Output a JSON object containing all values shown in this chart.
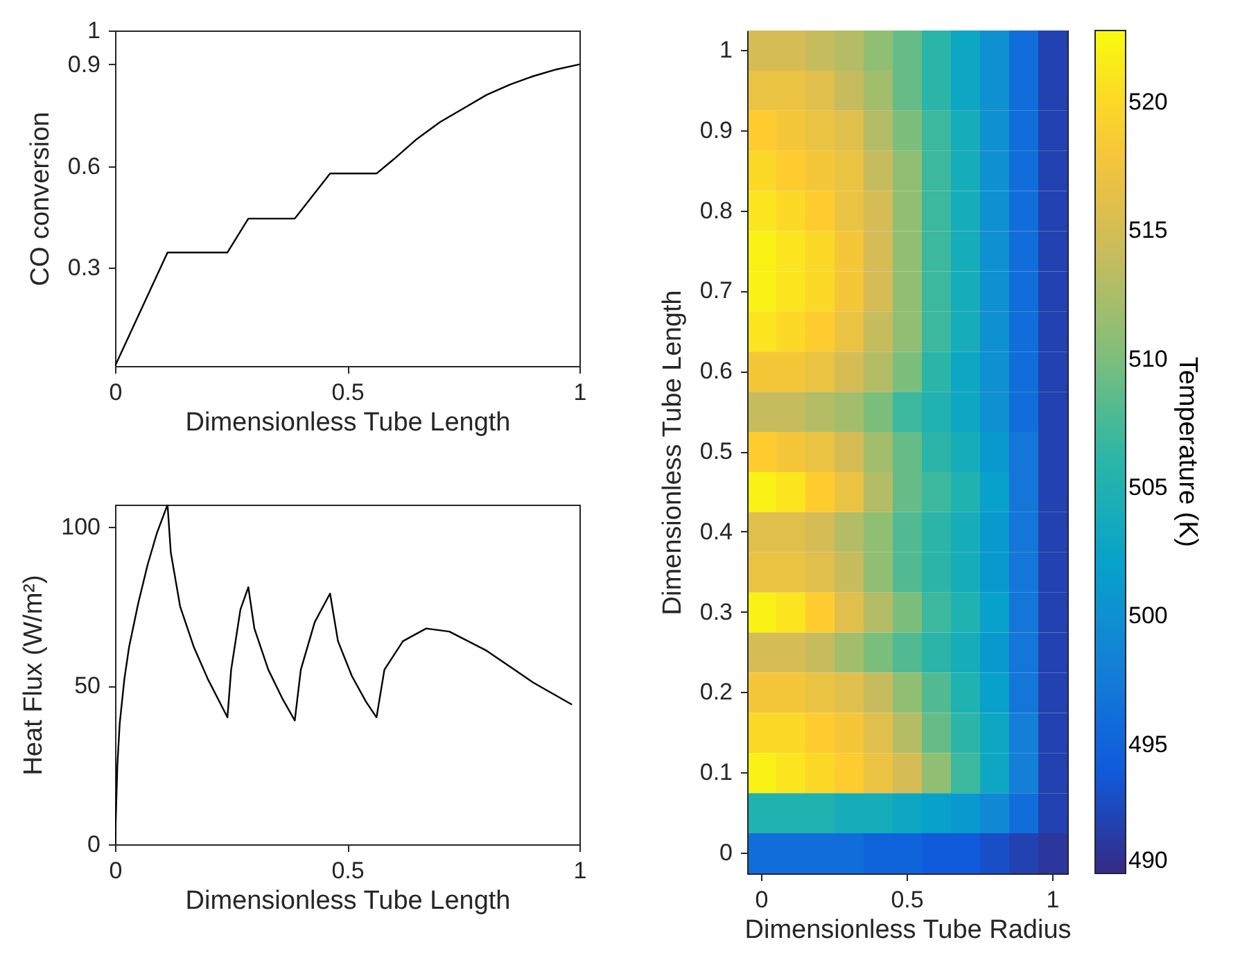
{
  "chart_data": [
    {
      "type": "line",
      "xlabel": "Dimensionless Tube Length",
      "ylabel": "CO conversion",
      "xlim": [
        0,
        1
      ],
      "ylim": [
        0.01,
        1
      ],
      "xticks": [
        0,
        0.5,
        1
      ],
      "yticks": [
        0.3,
        0.6,
        0.9,
        1
      ],
      "x": [
        0,
        0.113,
        0.242,
        0.287,
        0.387,
        0.463,
        0.563,
        0.6,
        0.65,
        0.7,
        0.75,
        0.8,
        0.85,
        0.9,
        0.95,
        1.0
      ],
      "series": [
        {
          "color": "#000000",
          "values": [
            0.01,
            0.345,
            0.345,
            0.445,
            0.445,
            0.578,
            0.578,
            0.62,
            0.68,
            0.73,
            0.77,
            0.81,
            0.84,
            0.865,
            0.885,
            0.9
          ]
        }
      ]
    },
    {
      "type": "line",
      "xlabel": "Dimensionless Tube Length",
      "ylabel": "Heat Flux (W/m²)",
      "xlim": [
        0,
        1
      ],
      "ylim": [
        0,
        107
      ],
      "xticks": [
        0,
        0.5,
        1
      ],
      "yticks": [
        0,
        50,
        100
      ],
      "x": [
        0,
        0.005,
        0.01,
        0.02,
        0.03,
        0.05,
        0.07,
        0.09,
        0.113,
        0.12,
        0.14,
        0.17,
        0.2,
        0.242,
        0.25,
        0.27,
        0.287,
        0.3,
        0.33,
        0.36,
        0.387,
        0.4,
        0.43,
        0.463,
        0.48,
        0.51,
        0.54,
        0.563,
        0.58,
        0.62,
        0.67,
        0.72,
        0.8,
        0.85,
        0.9,
        0.984
      ],
      "series": [
        {
          "color": "#000000",
          "values": [
            0,
            25,
            38,
            52,
            62,
            76,
            88,
            98,
            107,
            92,
            75,
            62,
            52,
            40,
            55,
            74,
            81,
            68,
            55,
            46,
            39,
            55,
            70,
            79,
            64,
            53,
            45,
            40,
            55,
            64,
            68,
            67,
            61,
            56,
            51,
            44
          ]
        }
      ]
    },
    {
      "type": "heatmap",
      "xlabel": "Dimensionless Tube Radius",
      "ylabel": "Dimensionless Tube Length",
      "clabel": "Temperature (K)",
      "clim": [
        490,
        522.8
      ],
      "cticks": [
        490,
        495,
        500,
        505,
        510,
        515,
        520
      ],
      "categories": [
        "0",
        null,
        null,
        null,
        null,
        "0.5",
        null,
        null,
        null,
        null,
        "1"
      ],
      "y_categories": [
        "1",
        null,
        "0.9",
        null,
        "0.8",
        null,
        "0.7",
        null,
        "0.6",
        null,
        "0.5",
        null,
        "0.4",
        null,
        "0.3",
        null,
        "0.2",
        null,
        "0.1",
        null,
        "0"
      ],
      "cells": [
        [
          515,
          515,
          514,
          513,
          511,
          509,
          506,
          503,
          500,
          496,
          492
        ],
        [
          517,
          517,
          516,
          514,
          512,
          509,
          506,
          503,
          500,
          496,
          492
        ],
        [
          519,
          518,
          517,
          516,
          513,
          510,
          507,
          504,
          500,
          496,
          492
        ],
        [
          520,
          519,
          518,
          517,
          514,
          511,
          507,
          504,
          500,
          496,
          492
        ],
        [
          521,
          520,
          519,
          517,
          515,
          511,
          507,
          504,
          500,
          496,
          492
        ],
        [
          522,
          521,
          520,
          518,
          515,
          511,
          507,
          504,
          500,
          496,
          492
        ],
        [
          522,
          521,
          520,
          518,
          515,
          511,
          507,
          504,
          500,
          496,
          492
        ],
        [
          521,
          520,
          519,
          517,
          514,
          511,
          507,
          504,
          500,
          496,
          492
        ],
        [
          518,
          518,
          517,
          515,
          513,
          510,
          506,
          503,
          500,
          496,
          492
        ],
        [
          514,
          514,
          513,
          512,
          510,
          507,
          505,
          503,
          500,
          496,
          492
        ],
        [
          519,
          518,
          517,
          515,
          512,
          509,
          506,
          504,
          501,
          497,
          492
        ],
        [
          522,
          521,
          519,
          517,
          513,
          509,
          507,
          505,
          502,
          497,
          492
        ],
        [
          516,
          516,
          515,
          513,
          511,
          508,
          506,
          504,
          501,
          497,
          492
        ],
        [
          517,
          517,
          516,
          514,
          511,
          508,
          506,
          504,
          501,
          497,
          492
        ],
        [
          522,
          521,
          519,
          516,
          513,
          510,
          507,
          505,
          502,
          497,
          492
        ],
        [
          515,
          515,
          514,
          512,
          510,
          508,
          506,
          504,
          501,
          497,
          492
        ],
        [
          518,
          518,
          517,
          516,
          514,
          511,
          508,
          505,
          502,
          497,
          492
        ],
        [
          520,
          520,
          519,
          518,
          516,
          513,
          509,
          506,
          503,
          498,
          492
        ],
        [
          522,
          521,
          520,
          519,
          517,
          515,
          511,
          507,
          503,
          498,
          492
        ],
        [
          505,
          505,
          505,
          504,
          504,
          503,
          502,
          501,
          499,
          496,
          492
        ],
        [
          496,
          496,
          496,
          496,
          495,
          495,
          494,
          494,
          493,
          492,
          491
        ]
      ]
    }
  ]
}
